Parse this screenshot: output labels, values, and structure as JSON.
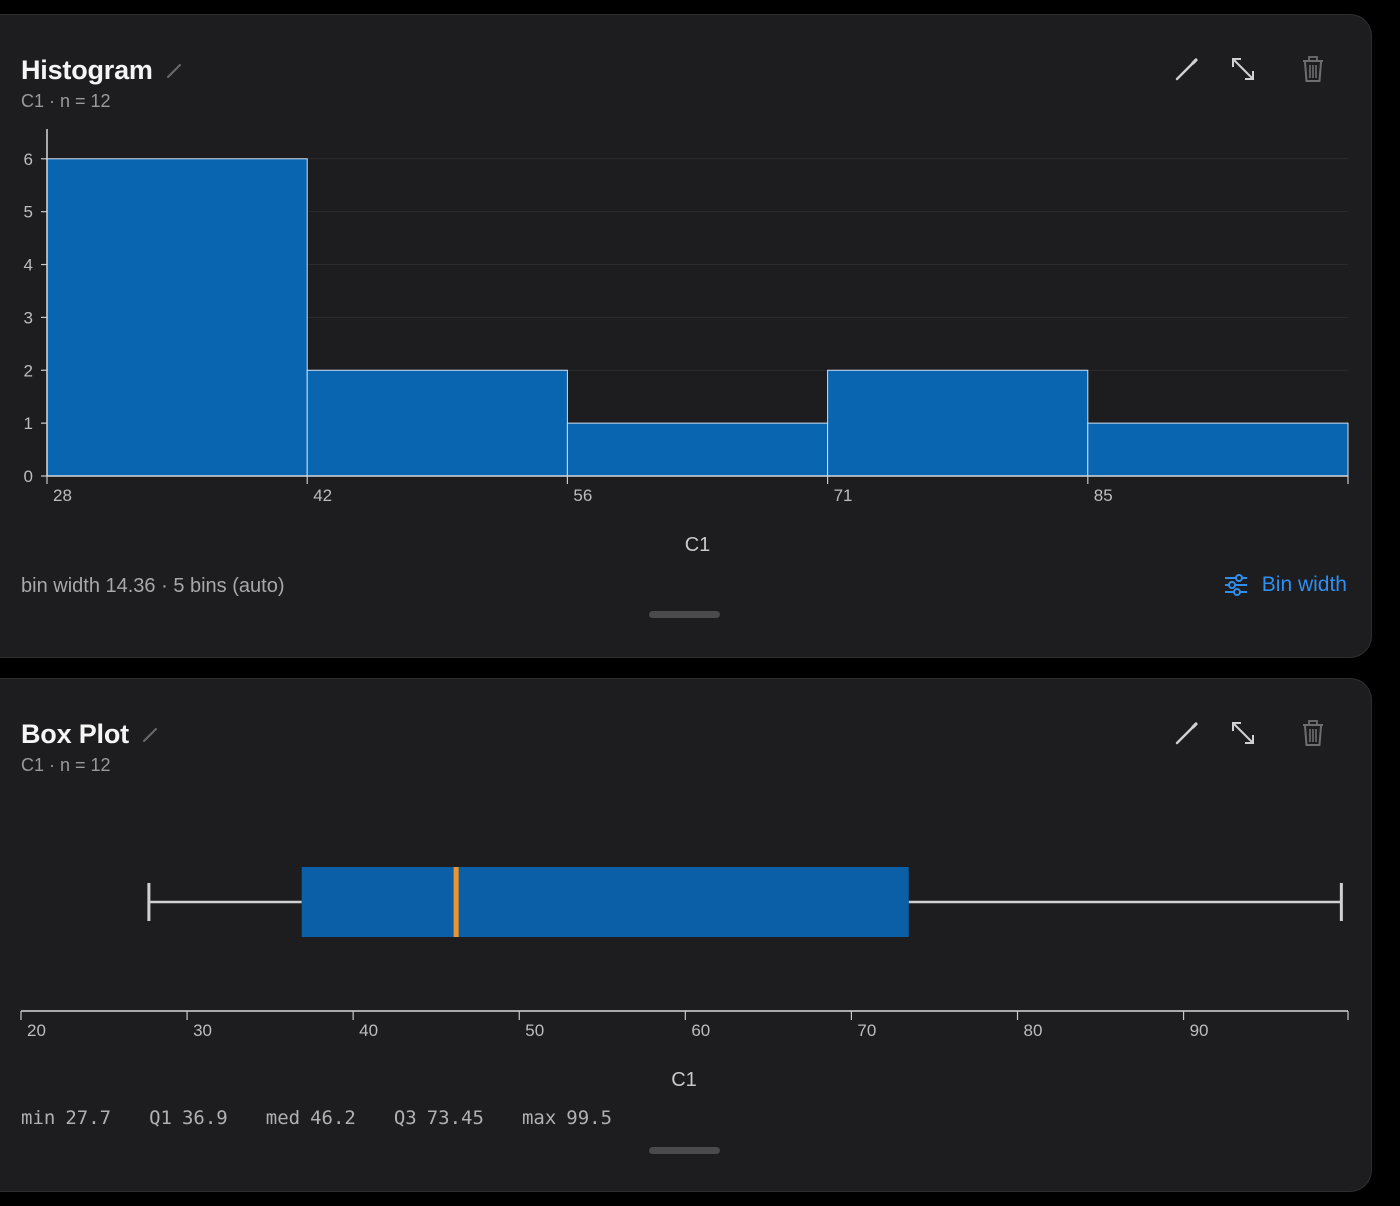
{
  "histogram_card": {
    "title": "Histogram",
    "subtitle": "C1 · n = 12",
    "footer": "bin width 14.36 · 5 bins (auto)",
    "bin_width_button": "Bin width",
    "accent": "#2f8ff0"
  },
  "boxplot_card": {
    "title": "Box Plot",
    "subtitle": "C1 · n = 12",
    "stats": [
      {
        "key": "min",
        "value": "27.7"
      },
      {
        "key": "Q1",
        "value": "36.9"
      },
      {
        "key": "med",
        "value": "46.2"
      },
      {
        "key": "Q3",
        "value": "73.45"
      },
      {
        "key": "max",
        "value": "99.5"
      }
    ]
  },
  "icons": {
    "rename": "pencil-icon",
    "edit": "pencil-icon",
    "expand": "expand-arrows-icon",
    "delete": "trash-icon",
    "bin_settings": "sliders-icon"
  },
  "chart_data": [
    {
      "type": "bar",
      "subtype": "histogram",
      "xlabel": "C1",
      "ylabel": "",
      "bin_edges": [
        27.7,
        42.06,
        56.42,
        70.78,
        85.14,
        99.5
      ],
      "tick_labels": [
        "28",
        "42",
        "56",
        "71",
        "85"
      ],
      "values": [
        6,
        2,
        1,
        2,
        1
      ],
      "yticks": [
        0,
        1,
        2,
        3,
        4,
        5,
        6
      ],
      "ylim": [
        0,
        6.45
      ],
      "grid": true,
      "color": "#0a65b0"
    },
    {
      "type": "box",
      "xlabel": "C1",
      "min": 27.7,
      "q1": 36.9,
      "median": 46.2,
      "q3": 73.45,
      "max": 99.5,
      "xlim": [
        20,
        99.9
      ],
      "xticks": [
        20,
        30,
        40,
        50,
        60,
        70,
        80,
        90
      ],
      "box_color": "#0a5fa6",
      "median_color": "#f0932b"
    }
  ]
}
